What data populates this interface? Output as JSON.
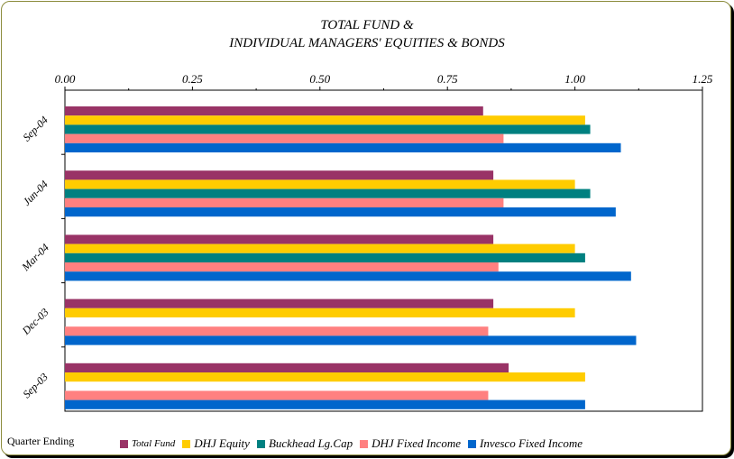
{
  "chart_data": {
    "type": "bar",
    "orientation": "horizontal",
    "title_lines": [
      "TOTAL FUND &",
      "INDIVIDUAL MANAGERS' EQUITIES & BONDS"
    ],
    "xlabel": "",
    "ylabel": "Quarter Ending",
    "xlim": [
      0,
      1.25
    ],
    "xticks": [
      "0.00",
      "0.25",
      "0.50",
      "0.75",
      "1.00",
      "1.25"
    ],
    "xtick_values": [
      0,
      0.25,
      0.5,
      0.75,
      1.0,
      1.25
    ],
    "categories": [
      "Sep-04",
      "Jun-04",
      "Mar-04",
      "Dec-03",
      "Sep-03"
    ],
    "series": [
      {
        "name": "Total Fund",
        "color": "#993366",
        "values": [
          0.82,
          0.84,
          0.84,
          0.84,
          0.87
        ]
      },
      {
        "name": "DHJ Equity",
        "color": "#ffcc00",
        "values": [
          1.02,
          1.0,
          1.0,
          1.0,
          1.02
        ]
      },
      {
        "name": "Buckhead Lg.Cap",
        "color": "#008080",
        "values": [
          1.03,
          1.03,
          1.02,
          null,
          null
        ]
      },
      {
        "name": "DHJ Fixed Income",
        "color": "#ff8080",
        "values": [
          0.86,
          0.86,
          0.85,
          0.83,
          0.83
        ]
      },
      {
        "name": "Invesco Fixed Income",
        "color": "#0066cc",
        "values": [
          1.09,
          1.08,
          1.11,
          1.12,
          1.02
        ]
      }
    ],
    "grid": false,
    "legend_position": "bottom"
  }
}
